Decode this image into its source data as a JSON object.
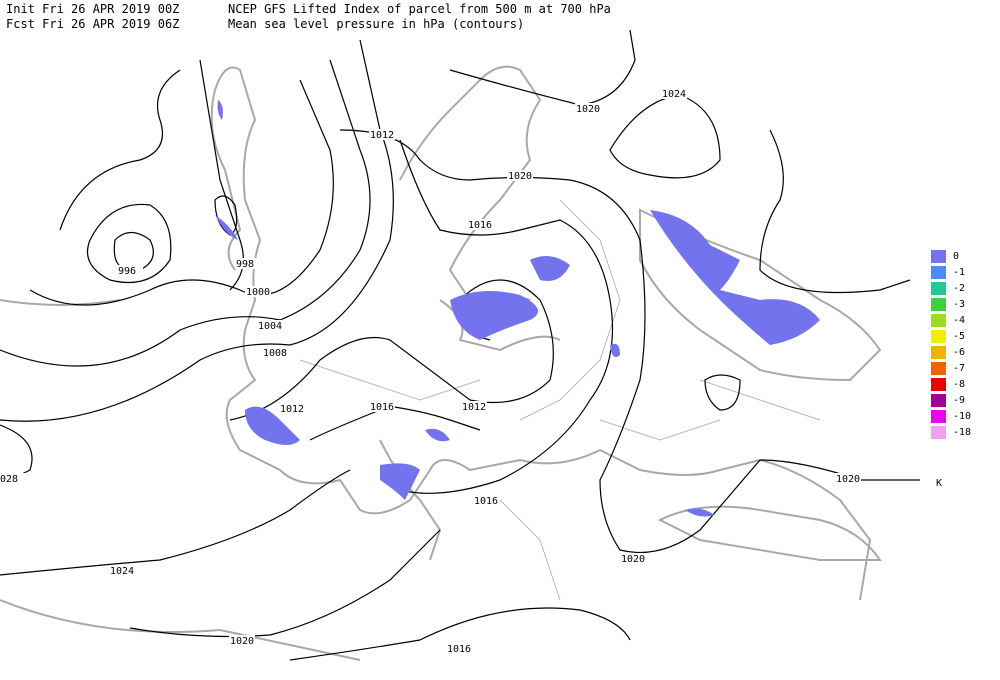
{
  "header": {
    "init": "Init  Fri 26 APR 2019 00Z",
    "fcst": "Fcst Fri 26 APR 2019 06Z",
    "title": "NCEP GFS Lifted Index of parcel from 500 m at 700 hPa",
    "subtitle": "Mean sea level pressure in hPa (contours)"
  },
  "legend": {
    "unit": "K",
    "items": [
      {
        "label": "0",
        "color": "#7373ee"
      },
      {
        "label": "-1",
        "color": "#4a8cf2"
      },
      {
        "label": "-2",
        "color": "#22c896"
      },
      {
        "label": "-3",
        "color": "#3cd23c"
      },
      {
        "label": "-4",
        "color": "#a0dc1e"
      },
      {
        "label": "-5",
        "color": "#f0f000"
      },
      {
        "label": "-6",
        "color": "#f0b400"
      },
      {
        "label": "-7",
        "color": "#f06400"
      },
      {
        "label": "-8",
        "color": "#ee0000"
      },
      {
        "label": "-9",
        "color": "#a0009a"
      },
      {
        "label": "-10",
        "color": "#f000f0"
      },
      {
        "label": "-18",
        "color": "#f0a0f0"
      }
    ]
  },
  "contour_labels": [
    "996",
    "998",
    "1000",
    "1004",
    "1008",
    "1012",
    "1016",
    "1012",
    "1016",
    "1016",
    "1020",
    "1012",
    "1020",
    "1024",
    "1020",
    "1020",
    "1024",
    "1020",
    "1016",
    "028"
  ]
}
